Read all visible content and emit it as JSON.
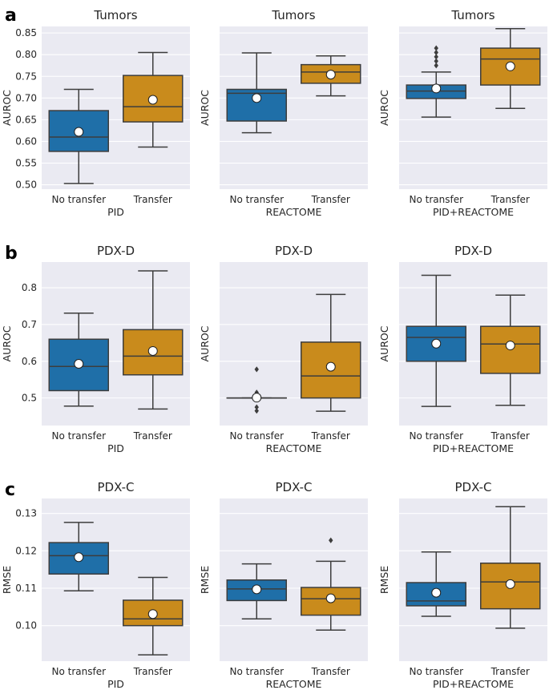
{
  "colors": {
    "no_transfer": "#1f6fa8",
    "transfer": "#c98b1c",
    "axes_bg": "#eaeaf2",
    "grid": "#ffffff",
    "line": "#3d3d3d"
  },
  "rows": [
    {
      "letter": "a",
      "ylabel": "AUROC",
      "ylim": [
        0.49,
        0.865
      ],
      "ticks": [
        0.5,
        0.55,
        0.6,
        0.65,
        0.7,
        0.75,
        0.8,
        0.85
      ],
      "tick_labels": [
        "0.50",
        "0.55",
        "0.60",
        "0.65",
        "0.70",
        "0.75",
        "0.80",
        "0.85"
      ]
    },
    {
      "letter": "b",
      "ylabel": "AUROC",
      "ylim": [
        0.425,
        0.87
      ],
      "ticks": [
        0.5,
        0.6,
        0.7,
        0.8
      ],
      "tick_labels": [
        "0.5",
        "0.6",
        "0.7",
        "0.8"
      ]
    },
    {
      "letter": "c",
      "ylabel": "RMSE",
      "ylim": [
        0.0905,
        0.134
      ],
      "ticks": [
        0.1,
        0.11,
        0.12,
        0.13
      ],
      "tick_labels": [
        "0.10",
        "0.11",
        "0.12",
        "0.13"
      ]
    }
  ],
  "chart_data": [
    {
      "type": "box",
      "row": 0,
      "col": 0,
      "title": "Tumors",
      "xlabel": "PID",
      "ylabel": "AUROC",
      "categories": [
        "No transfer",
        "Transfer"
      ],
      "boxes": [
        {
          "whislo": 0.503,
          "q1": 0.577,
          "med": 0.61,
          "q3": 0.671,
          "whishi": 0.72,
          "mean": 0.622,
          "fliers": []
        },
        {
          "whislo": 0.587,
          "q1": 0.645,
          "med": 0.68,
          "q3": 0.752,
          "whishi": 0.805,
          "mean": 0.696,
          "fliers": []
        }
      ]
    },
    {
      "type": "box",
      "row": 0,
      "col": 1,
      "title": "Tumors",
      "xlabel": "REACTOME",
      "ylabel": "AUROC",
      "categories": [
        "No transfer",
        "Transfer"
      ],
      "boxes": [
        {
          "whislo": 0.62,
          "q1": 0.647,
          "med": 0.711,
          "q3": 0.72,
          "whishi": 0.804,
          "mean": 0.7,
          "fliers": []
        },
        {
          "whislo": 0.705,
          "q1": 0.734,
          "med": 0.76,
          "q3": 0.777,
          "whishi": 0.797,
          "mean": 0.754,
          "fliers": []
        }
      ]
    },
    {
      "type": "box",
      "row": 0,
      "col": 2,
      "title": "Tumors",
      "xlabel": "PID+REACTOME",
      "ylabel": "AUROC",
      "categories": [
        "No transfer",
        "Transfer"
      ],
      "boxes": [
        {
          "whislo": 0.656,
          "q1": 0.699,
          "med": 0.716,
          "q3": 0.73,
          "whishi": 0.76,
          "mean": 0.722,
          "fliers": [
            0.775,
            0.785,
            0.795,
            0.805,
            0.815
          ]
        },
        {
          "whislo": 0.676,
          "q1": 0.73,
          "med": 0.79,
          "q3": 0.815,
          "whishi": 0.86,
          "mean": 0.773,
          "fliers": []
        }
      ]
    },
    {
      "type": "box",
      "row": 1,
      "col": 0,
      "title": "PDX-D",
      "xlabel": "PID",
      "ylabel": "AUROC",
      "categories": [
        "No transfer",
        "Transfer"
      ],
      "boxes": [
        {
          "whislo": 0.478,
          "q1": 0.52,
          "med": 0.586,
          "q3": 0.66,
          "whishi": 0.731,
          "mean": 0.593,
          "fliers": []
        },
        {
          "whislo": 0.47,
          "q1": 0.563,
          "med": 0.614,
          "q3": 0.686,
          "whishi": 0.846,
          "mean": 0.628,
          "fliers": []
        }
      ]
    },
    {
      "type": "box",
      "row": 1,
      "col": 1,
      "title": "PDX-D",
      "xlabel": "REACTOME",
      "ylabel": "AUROC",
      "categories": [
        "No transfer",
        "Transfer"
      ],
      "boxes": [
        {
          "whislo": 0.5,
          "q1": 0.5,
          "med": 0.5,
          "q3": 0.5,
          "whishi": 0.5,
          "mean": 0.501,
          "fliers": [
            0.578,
            0.515,
            0.51,
            0.475,
            0.465
          ]
        },
        {
          "whislo": 0.464,
          "q1": 0.5,
          "med": 0.56,
          "q3": 0.652,
          "whishi": 0.782,
          "mean": 0.585,
          "fliers": []
        }
      ]
    },
    {
      "type": "box",
      "row": 1,
      "col": 2,
      "title": "PDX-D",
      "xlabel": "PID+REACTOME",
      "ylabel": "AUROC",
      "categories": [
        "No transfer",
        "Transfer"
      ],
      "boxes": [
        {
          "whislo": 0.477,
          "q1": 0.6,
          "med": 0.665,
          "q3": 0.695,
          "whishi": 0.834,
          "mean": 0.648,
          "fliers": []
        },
        {
          "whislo": 0.48,
          "q1": 0.567,
          "med": 0.647,
          "q3": 0.695,
          "whishi": 0.78,
          "mean": 0.643,
          "fliers": []
        }
      ]
    },
    {
      "type": "box",
      "row": 2,
      "col": 0,
      "title": "PDX-C",
      "xlabel": "PID",
      "ylabel": "RMSE",
      "categories": [
        "No transfer",
        "Transfer"
      ],
      "boxes": [
        {
          "whislo": 0.1093,
          "q1": 0.1138,
          "med": 0.1187,
          "q3": 0.1222,
          "whishi": 0.1276,
          "mean": 0.1183,
          "fliers": []
        },
        {
          "whislo": 0.0922,
          "q1": 0.1,
          "med": 0.1018,
          "q3": 0.1068,
          "whishi": 0.1129,
          "mean": 0.1031,
          "fliers": []
        }
      ]
    },
    {
      "type": "box",
      "row": 2,
      "col": 1,
      "title": "PDX-C",
      "xlabel": "REACTOME",
      "ylabel": "RMSE",
      "categories": [
        "No transfer",
        "Transfer"
      ],
      "boxes": [
        {
          "whislo": 0.1018,
          "q1": 0.1067,
          "med": 0.1098,
          "q3": 0.1122,
          "whishi": 0.1165,
          "mean": 0.1097,
          "fliers": []
        },
        {
          "whislo": 0.0988,
          "q1": 0.1028,
          "med": 0.1072,
          "q3": 0.1102,
          "whishi": 0.1172,
          "mean": 0.1073,
          "fliers": [
            0.1228
          ]
        }
      ]
    },
    {
      "type": "box",
      "row": 2,
      "col": 2,
      "title": "PDX-C",
      "xlabel": "PID+REACTOME",
      "ylabel": "RMSE",
      "categories": [
        "No transfer",
        "Transfer"
      ],
      "boxes": [
        {
          "whislo": 0.1025,
          "q1": 0.1053,
          "med": 0.1066,
          "q3": 0.1115,
          "whishi": 0.1197,
          "mean": 0.1088,
          "fliers": []
        },
        {
          "whislo": 0.0993,
          "q1": 0.1045,
          "med": 0.1117,
          "q3": 0.1167,
          "whishi": 0.1318,
          "mean": 0.1111,
          "fliers": []
        }
      ]
    }
  ]
}
